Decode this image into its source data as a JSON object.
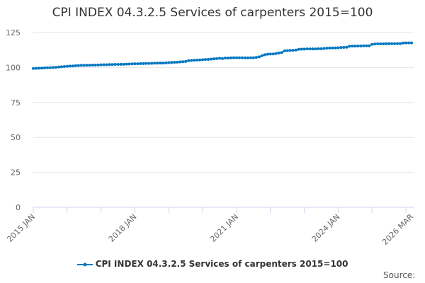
{
  "chart_data": {
    "type": "line",
    "title": "CPI INDEX 04.3.2.5 Services of carpenters 2015=100",
    "xlabel": "",
    "ylabel": "",
    "x_start": "2015 JAN",
    "x_end": "2026 MAR",
    "frequency": "monthly",
    "x_tick_labels": [
      "2015 JAN",
      "2018 JAN",
      "2021 JAN",
      "2024 JAN",
      "2026 MAR"
    ],
    "y_ticks": [
      0,
      25,
      50,
      75,
      100,
      125
    ],
    "ylim": [
      0,
      125
    ],
    "grid": "horizontal",
    "legend_position": "bottom",
    "color": "#0077c0",
    "series": [
      {
        "name": "CPI INDEX 04.3.2.5 Services of carpenters 2015=100",
        "values": [
          99.3,
          99.4,
          99.5,
          99.6,
          99.7,
          99.8,
          99.9,
          100.0,
          100.1,
          100.3,
          100.5,
          100.7,
          100.9,
          101.0,
          101.1,
          101.3,
          101.4,
          101.5,
          101.5,
          101.6,
          101.6,
          101.7,
          101.7,
          101.8,
          101.9,
          102.0,
          102.0,
          102.1,
          102.1,
          102.2,
          102.2,
          102.3,
          102.3,
          102.4,
          102.5,
          102.6,
          102.7,
          102.7,
          102.8,
          102.8,
          102.9,
          102.9,
          103.0,
          103.1,
          103.1,
          103.2,
          103.2,
          103.3,
          103.5,
          103.6,
          103.7,
          103.8,
          104.0,
          104.1,
          104.3,
          104.9,
          105.1,
          105.2,
          105.3,
          105.4,
          105.6,
          105.7,
          105.8,
          106.0,
          106.2,
          106.4,
          106.6,
          106.4,
          106.8,
          106.8,
          106.9,
          107.0,
          107.0,
          107.0,
          107.0,
          106.9,
          106.9,
          107.0,
          107.0,
          107.2,
          107.6,
          108.4,
          109.1,
          109.5,
          109.6,
          109.7,
          110.0,
          110.4,
          110.7,
          111.9,
          112.1,
          112.2,
          112.3,
          112.5,
          113.0,
          113.1,
          113.2,
          113.3,
          113.3,
          113.3,
          113.3,
          113.4,
          113.4,
          113.6,
          113.8,
          113.9,
          114.0,
          114.0,
          114.1,
          114.3,
          114.4,
          114.5,
          115.2,
          115.3,
          115.3,
          115.4,
          115.4,
          115.5,
          115.5,
          115.5,
          116.6,
          116.8,
          116.9,
          116.9,
          116.9,
          117.0,
          117.0,
          117.0,
          117.0,
          117.1,
          117.1,
          117.5,
          117.6,
          117.6,
          117.6
        ]
      }
    ]
  },
  "footer": {
    "source_label": "Source:"
  }
}
